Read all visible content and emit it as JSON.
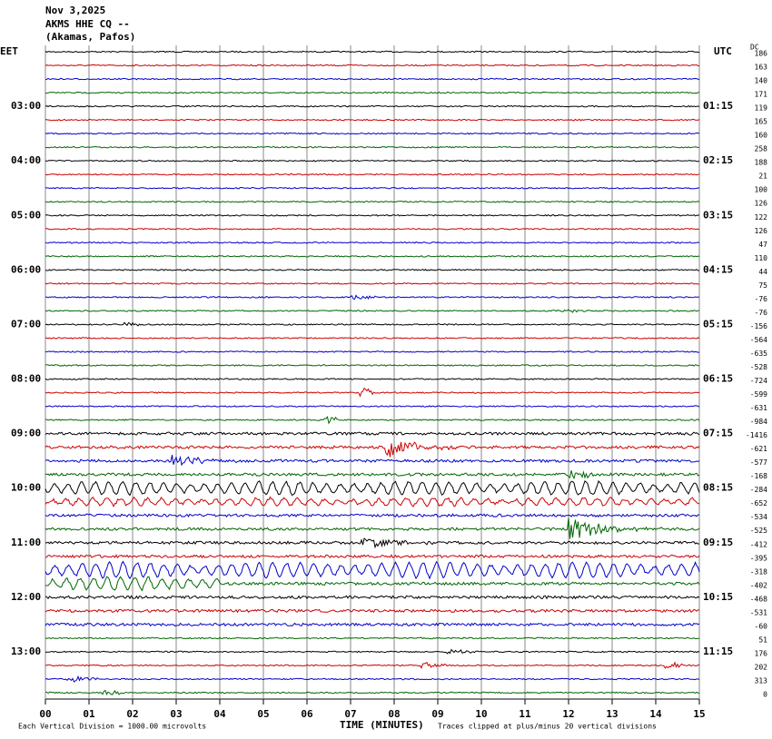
{
  "header": {
    "date": "Nov 3,2025",
    "station": "AKMS HHE CQ --",
    "location": "(Akamas, Pafos)"
  },
  "left_axis": {
    "title": "EET",
    "labels": [
      "03:00",
      "04:00",
      "05:00",
      "06:00",
      "07:00",
      "08:00",
      "09:00",
      "10:00",
      "11:00",
      "12:00",
      "13:00"
    ]
  },
  "right_axis": {
    "title": "UTC",
    "labels": [
      "01:15",
      "02:15",
      "03:15",
      "04:15",
      "05:15",
      "06:15",
      "07:15",
      "08:15",
      "09:15",
      "10:15",
      "11:15"
    ]
  },
  "dc": {
    "title": "DC",
    "values": [
      186,
      163,
      140,
      171,
      119,
      165,
      160,
      258,
      188,
      21,
      100,
      126,
      122,
      126,
      47,
      110,
      44,
      75,
      -76,
      -76,
      -156,
      -564,
      -635,
      -528,
      -724,
      -599,
      -631,
      -984,
      -1416,
      -621,
      -577,
      -168,
      -284,
      -652,
      -534,
      -525,
      -412,
      -395,
      -318,
      -402,
      -468,
      -531,
      -60,
      51,
      176,
      202,
      313,
      0
    ]
  },
  "x_axis": {
    "title": "TIME (MINUTES)",
    "labels": [
      "00",
      "01",
      "02",
      "03",
      "04",
      "05",
      "06",
      "07",
      "08",
      "09",
      "10",
      "11",
      "12",
      "13",
      "14",
      "15"
    ]
  },
  "footer": {
    "scale_note": "Each Vertical Division = 1000.00 microvolts",
    "clip_note": "Traces clipped at plus/minus 20 vertical divisions"
  },
  "trace_colors": [
    "#000000",
    "#cc0000",
    "#0000cc",
    "#006600"
  ]
}
